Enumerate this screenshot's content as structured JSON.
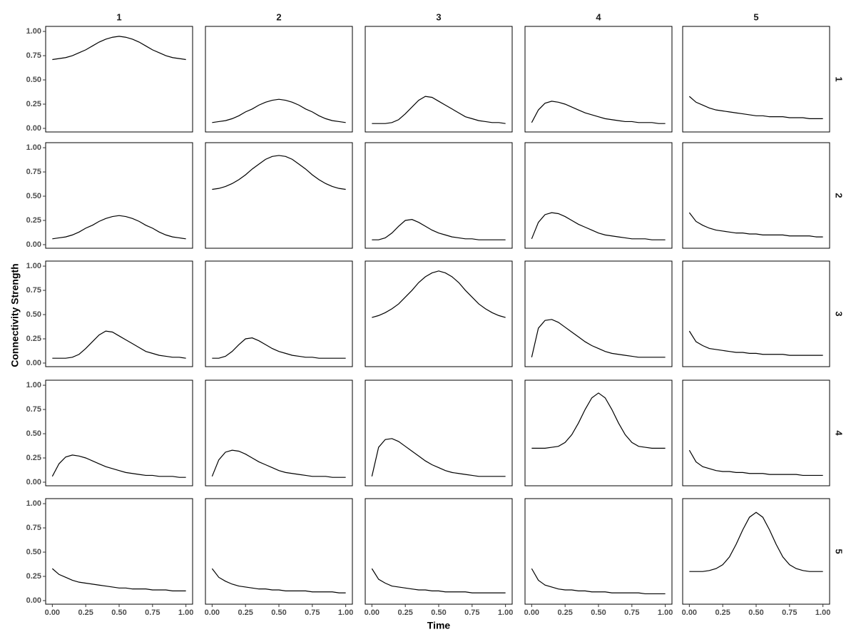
{
  "chart_data": {
    "type": "line",
    "x_label": "Time",
    "y_label": "Connectivity Strength",
    "columns": [
      "1",
      "2",
      "3",
      "4",
      "5"
    ],
    "rows": [
      "1",
      "2",
      "3",
      "4",
      "5"
    ],
    "x": [
      0,
      0.05,
      0.1,
      0.15,
      0.2,
      0.25,
      0.3,
      0.35,
      0.4,
      0.45,
      0.5,
      0.55,
      0.6,
      0.65,
      0.7,
      0.75,
      0.8,
      0.85,
      0.9,
      0.95,
      1
    ],
    "xlim": [
      -0.05,
      1.05
    ],
    "ylim": [
      -0.037,
      1.052
    ],
    "xticks": [
      {
        "value": 0,
        "label": "0.00"
      },
      {
        "value": 0.25,
        "label": "0.25"
      },
      {
        "value": 0.5,
        "label": "0.50"
      },
      {
        "value": 0.75,
        "label": "0.75"
      },
      {
        "value": 1,
        "label": "1.00"
      }
    ],
    "yticks": [
      {
        "value": 0,
        "label": "0.00"
      },
      {
        "value": 0.25,
        "label": "0.25"
      },
      {
        "value": 0.5,
        "label": "0.50"
      },
      {
        "value": 0.75,
        "label": "0.75"
      },
      {
        "value": 1,
        "label": "1.00"
      }
    ],
    "grid": false,
    "color": "#000000",
    "panels": [
      [
        [
          0.71,
          0.72,
          0.73,
          0.75,
          0.78,
          0.81,
          0.85,
          0.89,
          0.92,
          0.94,
          0.95,
          0.94,
          0.92,
          0.89,
          0.85,
          0.81,
          0.78,
          0.75,
          0.73,
          0.72,
          0.71
        ],
        [
          0.06,
          0.07,
          0.08,
          0.1,
          0.13,
          0.17,
          0.2,
          0.24,
          0.27,
          0.29,
          0.3,
          0.29,
          0.27,
          0.24,
          0.2,
          0.17,
          0.13,
          0.1,
          0.08,
          0.07,
          0.06
        ],
        [
          0.05,
          0.05,
          0.05,
          0.06,
          0.09,
          0.15,
          0.22,
          0.29,
          0.33,
          0.32,
          0.28,
          0.24,
          0.2,
          0.16,
          0.12,
          0.1,
          0.08,
          0.07,
          0.06,
          0.06,
          0.05
        ],
        [
          0.06,
          0.19,
          0.26,
          0.28,
          0.27,
          0.25,
          0.22,
          0.19,
          0.16,
          0.14,
          0.12,
          0.1,
          0.09,
          0.08,
          0.07,
          0.07,
          0.06,
          0.06,
          0.06,
          0.05,
          0.05
        ],
        [
          0.33,
          0.27,
          0.24,
          0.21,
          0.19,
          0.18,
          0.17,
          0.16,
          0.15,
          0.14,
          0.13,
          0.13,
          0.12,
          0.12,
          0.12,
          0.11,
          0.11,
          0.11,
          0.1,
          0.1,
          0.1
        ]
      ],
      [
        [
          0.06,
          0.07,
          0.08,
          0.1,
          0.13,
          0.17,
          0.2,
          0.24,
          0.27,
          0.29,
          0.3,
          0.29,
          0.27,
          0.24,
          0.2,
          0.17,
          0.13,
          0.1,
          0.08,
          0.07,
          0.06
        ],
        [
          0.57,
          0.58,
          0.6,
          0.63,
          0.67,
          0.72,
          0.78,
          0.83,
          0.88,
          0.91,
          0.92,
          0.91,
          0.88,
          0.83,
          0.78,
          0.72,
          0.67,
          0.63,
          0.6,
          0.58,
          0.57
        ],
        [
          0.05,
          0.05,
          0.07,
          0.12,
          0.19,
          0.25,
          0.26,
          0.23,
          0.19,
          0.15,
          0.12,
          0.1,
          0.08,
          0.07,
          0.06,
          0.06,
          0.05,
          0.05,
          0.05,
          0.05,
          0.05
        ],
        [
          0.06,
          0.23,
          0.31,
          0.33,
          0.32,
          0.29,
          0.25,
          0.21,
          0.18,
          0.15,
          0.12,
          0.1,
          0.09,
          0.08,
          0.07,
          0.06,
          0.06,
          0.06,
          0.05,
          0.05,
          0.05
        ],
        [
          0.33,
          0.24,
          0.2,
          0.17,
          0.15,
          0.14,
          0.13,
          0.12,
          0.12,
          0.11,
          0.11,
          0.1,
          0.1,
          0.1,
          0.1,
          0.09,
          0.09,
          0.09,
          0.09,
          0.08,
          0.08
        ]
      ],
      [
        [
          0.05,
          0.05,
          0.05,
          0.06,
          0.09,
          0.15,
          0.22,
          0.29,
          0.33,
          0.32,
          0.28,
          0.24,
          0.2,
          0.16,
          0.12,
          0.1,
          0.08,
          0.07,
          0.06,
          0.06,
          0.05
        ],
        [
          0.05,
          0.05,
          0.07,
          0.12,
          0.19,
          0.25,
          0.26,
          0.23,
          0.19,
          0.15,
          0.12,
          0.1,
          0.08,
          0.07,
          0.06,
          0.06,
          0.05,
          0.05,
          0.05,
          0.05,
          0.05
        ],
        [
          0.47,
          0.49,
          0.52,
          0.56,
          0.61,
          0.68,
          0.75,
          0.83,
          0.89,
          0.93,
          0.95,
          0.93,
          0.89,
          0.83,
          0.75,
          0.68,
          0.61,
          0.56,
          0.52,
          0.49,
          0.47
        ],
        [
          0.06,
          0.36,
          0.44,
          0.45,
          0.42,
          0.37,
          0.32,
          0.27,
          0.22,
          0.18,
          0.15,
          0.12,
          0.1,
          0.09,
          0.08,
          0.07,
          0.06,
          0.06,
          0.06,
          0.06,
          0.06
        ],
        [
          0.33,
          0.22,
          0.18,
          0.15,
          0.14,
          0.13,
          0.12,
          0.11,
          0.11,
          0.1,
          0.1,
          0.09,
          0.09,
          0.09,
          0.09,
          0.08,
          0.08,
          0.08,
          0.08,
          0.08,
          0.08
        ]
      ],
      [
        [
          0.06,
          0.19,
          0.26,
          0.28,
          0.27,
          0.25,
          0.22,
          0.19,
          0.16,
          0.14,
          0.12,
          0.1,
          0.09,
          0.08,
          0.07,
          0.07,
          0.06,
          0.06,
          0.06,
          0.05,
          0.05
        ],
        [
          0.06,
          0.23,
          0.31,
          0.33,
          0.32,
          0.29,
          0.25,
          0.21,
          0.18,
          0.15,
          0.12,
          0.1,
          0.09,
          0.08,
          0.07,
          0.06,
          0.06,
          0.06,
          0.05,
          0.05,
          0.05
        ],
        [
          0.06,
          0.36,
          0.44,
          0.45,
          0.42,
          0.37,
          0.32,
          0.27,
          0.22,
          0.18,
          0.15,
          0.12,
          0.1,
          0.09,
          0.08,
          0.07,
          0.06,
          0.06,
          0.06,
          0.06,
          0.06
        ],
        [
          0.35,
          0.35,
          0.35,
          0.36,
          0.37,
          0.41,
          0.49,
          0.61,
          0.75,
          0.87,
          0.92,
          0.87,
          0.75,
          0.61,
          0.49,
          0.41,
          0.37,
          0.36,
          0.35,
          0.35,
          0.35
        ],
        [
          0.33,
          0.21,
          0.16,
          0.14,
          0.12,
          0.11,
          0.11,
          0.1,
          0.1,
          0.09,
          0.09,
          0.09,
          0.08,
          0.08,
          0.08,
          0.08,
          0.08,
          0.07,
          0.07,
          0.07,
          0.07
        ]
      ],
      [
        [
          0.33,
          0.27,
          0.24,
          0.21,
          0.19,
          0.18,
          0.17,
          0.16,
          0.15,
          0.14,
          0.13,
          0.13,
          0.12,
          0.12,
          0.12,
          0.11,
          0.11,
          0.11,
          0.1,
          0.1,
          0.1
        ],
        [
          0.33,
          0.24,
          0.2,
          0.17,
          0.15,
          0.14,
          0.13,
          0.12,
          0.12,
          0.11,
          0.11,
          0.1,
          0.1,
          0.1,
          0.1,
          0.09,
          0.09,
          0.09,
          0.09,
          0.08,
          0.08
        ],
        [
          0.33,
          0.22,
          0.18,
          0.15,
          0.14,
          0.13,
          0.12,
          0.11,
          0.11,
          0.1,
          0.1,
          0.09,
          0.09,
          0.09,
          0.09,
          0.08,
          0.08,
          0.08,
          0.08,
          0.08,
          0.08
        ],
        [
          0.33,
          0.21,
          0.16,
          0.14,
          0.12,
          0.11,
          0.11,
          0.1,
          0.1,
          0.09,
          0.09,
          0.09,
          0.08,
          0.08,
          0.08,
          0.08,
          0.08,
          0.07,
          0.07,
          0.07,
          0.07
        ],
        [
          0.3,
          0.3,
          0.3,
          0.31,
          0.33,
          0.37,
          0.45,
          0.58,
          0.73,
          0.86,
          0.91,
          0.86,
          0.73,
          0.58,
          0.45,
          0.37,
          0.33,
          0.31,
          0.3,
          0.3,
          0.3
        ]
      ]
    ]
  }
}
